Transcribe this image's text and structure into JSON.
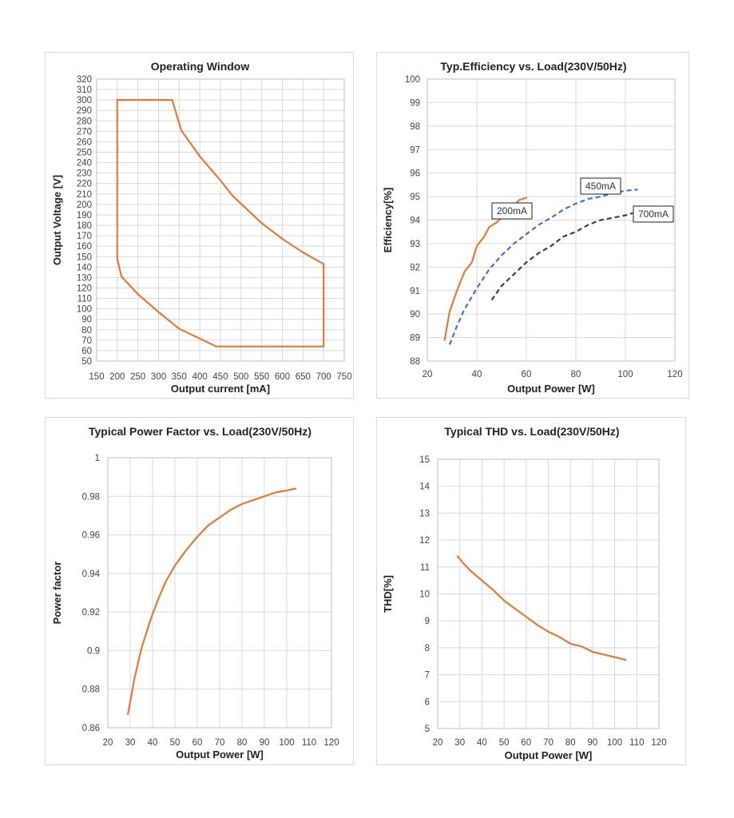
{
  "colors": {
    "orange": "#e07b39",
    "blue": "#4472c4",
    "dark": "#404040"
  },
  "chart_data": [
    {
      "type": "line",
      "title": "Operating Window",
      "xlabel": "Output current [mA]",
      "ylabel": "Output Voltage [V]",
      "xlim": [
        150,
        750
      ],
      "ylim": [
        50,
        320
      ],
      "xticks": [
        150,
        200,
        250,
        300,
        350,
        400,
        450,
        500,
        550,
        600,
        650,
        700,
        750
      ],
      "yticks": [
        50,
        60,
        70,
        80,
        90,
        100,
        110,
        120,
        130,
        140,
        150,
        160,
        170,
        180,
        190,
        200,
        210,
        220,
        230,
        240,
        250,
        260,
        270,
        280,
        290,
        300,
        310,
        320
      ],
      "grid": true,
      "series": [
        {
          "color": "#e07b39",
          "style": "solid",
          "x": [
            200,
            333,
            355,
            400,
            450,
            480,
            550,
            600,
            650,
            700,
            700,
            440,
            350,
            300,
            250,
            210,
            200,
            200
          ],
          "y": [
            300,
            300,
            271,
            246,
            223,
            208,
            182,
            167,
            154,
            143,
            64,
            64,
            81,
            97,
            114,
            131,
            148,
            300
          ]
        }
      ]
    },
    {
      "type": "line",
      "title": "Typ.Efficiency vs. Load(230V/50Hz)",
      "xlabel": "Output Power [W]",
      "ylabel": "Efficiency[%]",
      "xlim": [
        20,
        120
      ],
      "ylim": [
        88,
        100
      ],
      "xticks": [
        20,
        40,
        60,
        80,
        100,
        120
      ],
      "yticks": [
        88,
        89,
        90,
        91,
        92,
        93,
        94,
        95,
        96,
        97,
        98,
        99,
        100
      ],
      "grid": true,
      "annotations": [
        "200mA",
        "450mA",
        "700mA"
      ],
      "series": [
        {
          "name": "200mA",
          "color": "#e07b39",
          "style": "solid",
          "x": [
            27,
            29,
            32,
            35,
            38,
            40,
            43,
            45,
            48,
            52,
            55,
            57,
            60
          ],
          "y": [
            88.9,
            90.1,
            91.0,
            91.8,
            92.2,
            92.9,
            93.3,
            93.7,
            93.9,
            94.3,
            94.6,
            94.85,
            94.95
          ]
        },
        {
          "name": "450mA",
          "color": "#4472c4",
          "style": "dashed",
          "x": [
            29,
            32,
            35,
            40,
            45,
            50,
            55,
            60,
            65,
            70,
            75,
            80,
            85,
            90,
            95,
            100,
            105
          ],
          "y": [
            88.7,
            89.5,
            90.2,
            91.1,
            91.9,
            92.5,
            93.0,
            93.4,
            93.8,
            94.1,
            94.45,
            94.7,
            94.9,
            95.0,
            95.15,
            95.25,
            95.3
          ]
        },
        {
          "name": "700mA",
          "color": "#404040",
          "style": "dashed",
          "x": [
            46,
            50,
            55,
            60,
            65,
            70,
            75,
            80,
            85,
            90,
            95,
            100,
            103
          ],
          "y": [
            90.6,
            91.2,
            91.7,
            92.2,
            92.6,
            92.9,
            93.3,
            93.5,
            93.8,
            94.0,
            94.1,
            94.2,
            94.3
          ]
        }
      ]
    },
    {
      "type": "line",
      "title": "Typical Power Factor vs. Load(230V/50Hz)",
      "xlabel": "Output Power [W]",
      "ylabel": "Power factor",
      "xlim": [
        20,
        120
      ],
      "ylim": [
        0.86,
        1
      ],
      "xticks": [
        20,
        30,
        40,
        50,
        60,
        70,
        80,
        90,
        100,
        110,
        120
      ],
      "yticks": [
        0.86,
        0.88,
        0.9,
        0.92,
        0.94,
        0.96,
        0.98,
        1
      ],
      "ytick_labels": [
        "0.86",
        "0.88",
        "0.9",
        "0.92",
        "0.94",
        "0.96",
        "0.98",
        "1"
      ],
      "grid": true,
      "series": [
        {
          "color": "#e07b39",
          "style": "solid",
          "x": [
            29,
            32,
            35,
            38,
            40,
            43,
            46,
            50,
            55,
            60,
            65,
            70,
            75,
            80,
            85,
            90,
            95,
            100,
            104
          ],
          "y": [
            0.867,
            0.886,
            0.901,
            0.912,
            0.919,
            0.928,
            0.936,
            0.944,
            0.952,
            0.959,
            0.965,
            0.969,
            0.973,
            0.976,
            0.978,
            0.98,
            0.982,
            0.983,
            0.984
          ]
        }
      ]
    },
    {
      "type": "line",
      "title": "Typical THD vs. Load(230V/50Hz)",
      "xlabel": "Output Power [W]",
      "ylabel": "THD[%]",
      "xlim": [
        20,
        120
      ],
      "ylim": [
        5,
        15
      ],
      "xticks": [
        20,
        30,
        40,
        50,
        60,
        70,
        80,
        90,
        100,
        110,
        120
      ],
      "yticks": [
        5,
        6,
        7,
        8,
        9,
        10,
        11,
        12,
        13,
        14,
        15
      ],
      "grid": true,
      "series": [
        {
          "color": "#e07b39",
          "style": "solid",
          "x": [
            29,
            32,
            35,
            40,
            45,
            50,
            55,
            60,
            65,
            70,
            75,
            80,
            85,
            90,
            95,
            100,
            105
          ],
          "y": [
            11.4,
            11.1,
            10.85,
            10.5,
            10.15,
            9.75,
            9.45,
            9.15,
            8.85,
            8.6,
            8.4,
            8.15,
            8.05,
            7.85,
            7.75,
            7.65,
            7.55
          ]
        }
      ]
    }
  ]
}
